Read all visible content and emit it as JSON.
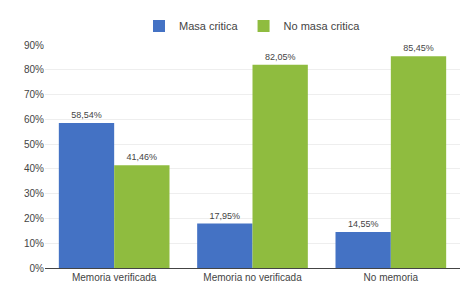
{
  "chart_data": {
    "type": "bar",
    "categories": [
      "Memoria verificada",
      "Memoria no verificada",
      "No memoria"
    ],
    "series": [
      {
        "name": "Masa critica",
        "color": "#4472c4",
        "values": [
          58.54,
          17.95,
          14.55
        ],
        "value_labels": [
          "58,54%",
          "17,95%",
          "14,55%"
        ]
      },
      {
        "name": "No masa critica",
        "color": "#8fbc3f",
        "values": [
          41.46,
          82.05,
          85.45
        ],
        "value_labels": [
          "41,46%",
          "82,05%",
          "85,45%"
        ]
      }
    ],
    "ylim": [
      0,
      90
    ],
    "yticks": [
      {
        "value": 0,
        "label": "0%"
      },
      {
        "value": 10,
        "label": "10%"
      },
      {
        "value": 20,
        "label": "20%"
      },
      {
        "value": 30,
        "label": "30%"
      },
      {
        "value": 40,
        "label": "40%"
      },
      {
        "value": 50,
        "label": "50%"
      },
      {
        "value": 60,
        "label": "60%"
      },
      {
        "value": 70,
        "label": "70%"
      },
      {
        "value": 80,
        "label": "80%"
      },
      {
        "value": 90,
        "label": "90%"
      }
    ],
    "grid": true,
    "data_labels": true,
    "legend": "top"
  }
}
